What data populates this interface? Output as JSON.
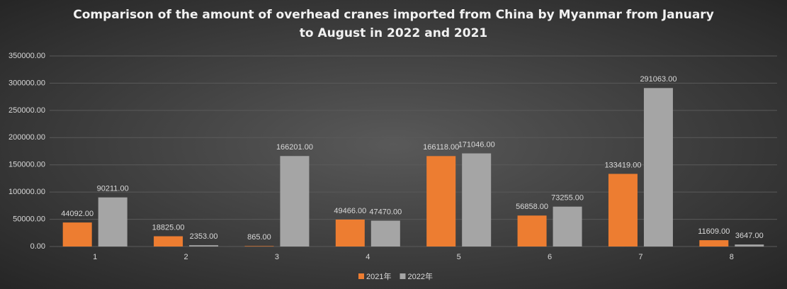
{
  "chart_data": {
    "type": "bar",
    "title": "Comparison of the amount of overhead cranes imported from China by Myanmar from January to August in 2022 and 2021",
    "categories": [
      "1",
      "2",
      "3",
      "4",
      "5",
      "6",
      "7",
      "8"
    ],
    "series": [
      {
        "name": "2021年",
        "color": "#ed7d31",
        "values": [
          44092,
          18825,
          865,
          49466,
          166118,
          56858,
          133419,
          11609
        ],
        "value_labels": [
          "44092.00",
          "18825.00",
          "865.00",
          "49466.00",
          "166118.00",
          "56858.00",
          "133419.00",
          "11609.00"
        ]
      },
      {
        "name": "2022年",
        "color": "#a5a5a5",
        "values": [
          90211,
          2353,
          166201,
          47470,
          171046,
          73255,
          291063,
          3647
        ],
        "value_labels": [
          "90211.00",
          "2353.00",
          "166201.00",
          "47470.00",
          "171046.00",
          "73255.00",
          "291063.00",
          "3647.00"
        ]
      }
    ],
    "ylim": [
      0,
      350000
    ],
    "yticks": [
      {
        "value": 0,
        "label": "0.00"
      },
      {
        "value": 50000,
        "label": "50000.00"
      },
      {
        "value": 100000,
        "label": "100000.00"
      },
      {
        "value": 150000,
        "label": "150000.00"
      },
      {
        "value": 200000,
        "label": "200000.00"
      },
      {
        "value": 250000,
        "label": "250000.00"
      },
      {
        "value": 300000,
        "label": "300000.00"
      },
      {
        "value": 350000,
        "label": "350000.00"
      }
    ],
    "grid": true
  }
}
